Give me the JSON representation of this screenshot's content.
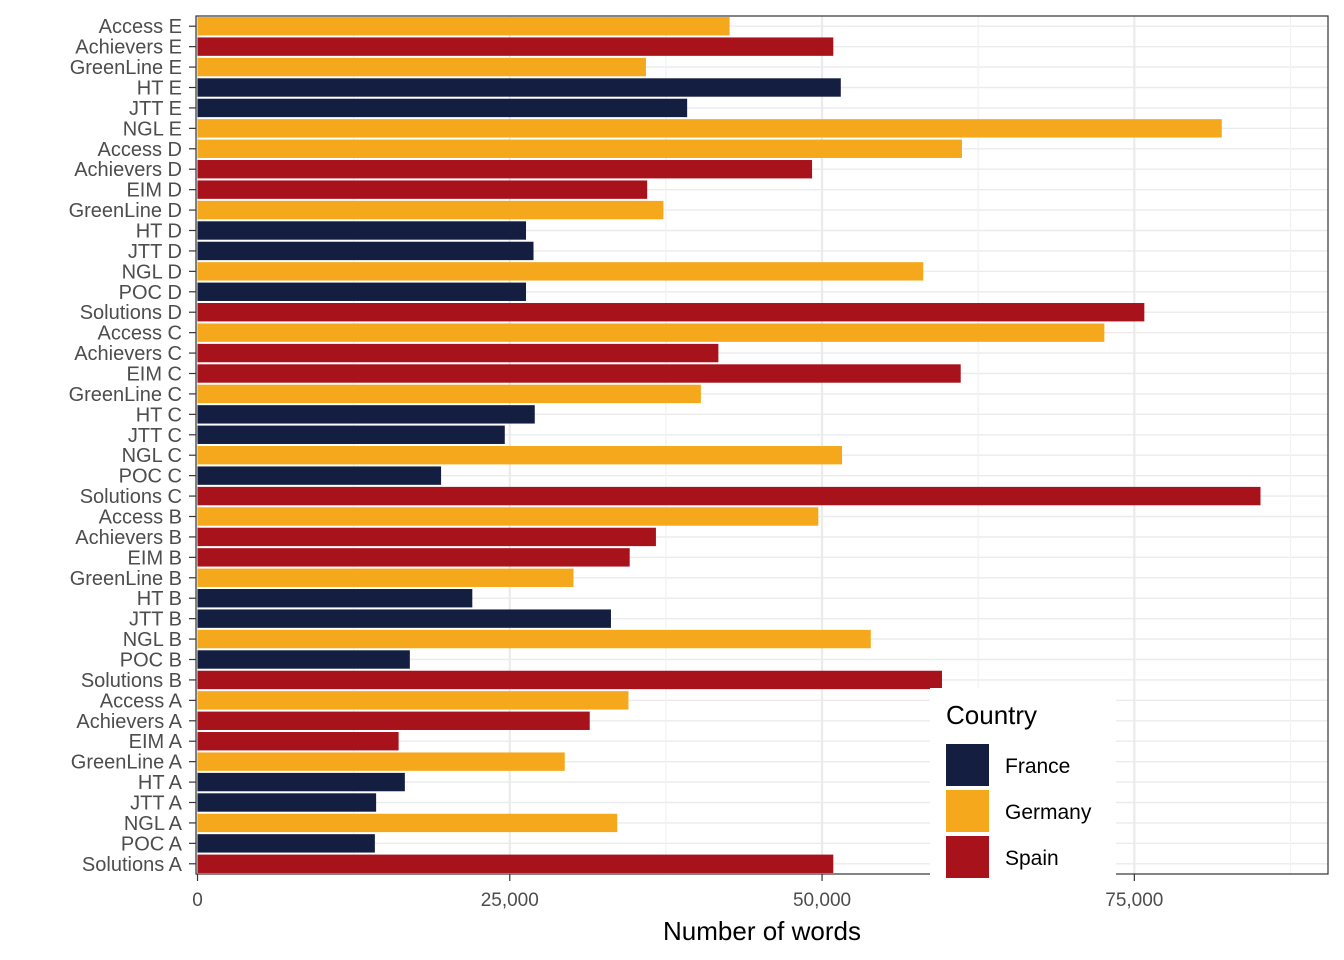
{
  "chart_data": {
    "type": "bar",
    "orientation": "horizontal",
    "xlabel": "Number of words",
    "ylabel": "",
    "xlim": [
      0,
      90000
    ],
    "xticks": [
      0,
      25000,
      50000,
      75000
    ],
    "xtick_labels": [
      "0",
      "25,000",
      "50,000",
      "75,000"
    ],
    "grid": true,
    "legend": {
      "title": "Country",
      "placement": "bottom-right inside",
      "entries": [
        {
          "name": "France",
          "color": "#131e41"
        },
        {
          "name": "Germany",
          "color": "#f5a81c"
        },
        {
          "name": "Spain",
          "color": "#a8121a"
        }
      ]
    },
    "bars": [
      {
        "label": "Access E",
        "country": "Germany",
        "value": 42600
      },
      {
        "label": "Achievers E",
        "country": "Spain",
        "value": 50900
      },
      {
        "label": "GreenLine E",
        "country": "Germany",
        "value": 35900
      },
      {
        "label": "HT E",
        "country": "France",
        "value": 51500
      },
      {
        "label": "JTT E",
        "country": "France",
        "value": 39200
      },
      {
        "label": "NGL E",
        "country": "Germany",
        "value": 82000
      },
      {
        "label": "Access D",
        "country": "Germany",
        "value": 61200
      },
      {
        "label": "Achievers D",
        "country": "Spain",
        "value": 49200
      },
      {
        "label": "EIM D",
        "country": "Spain",
        "value": 36000
      },
      {
        "label": "GreenLine D",
        "country": "Germany",
        "value": 37300
      },
      {
        "label": "HT D",
        "country": "France",
        "value": 26300
      },
      {
        "label": "JTT D",
        "country": "France",
        "value": 26900
      },
      {
        "label": "NGL D",
        "country": "Germany",
        "value": 58100
      },
      {
        "label": "POC D",
        "country": "France",
        "value": 26300
      },
      {
        "label": "Solutions D",
        "country": "Spain",
        "value": 75800
      },
      {
        "label": "Access C",
        "country": "Germany",
        "value": 72600
      },
      {
        "label": "Achievers C",
        "country": "Spain",
        "value": 41700
      },
      {
        "label": "EIM C",
        "country": "Spain",
        "value": 61100
      },
      {
        "label": "GreenLine C",
        "country": "Germany",
        "value": 40300
      },
      {
        "label": "HT C",
        "country": "France",
        "value": 27000
      },
      {
        "label": "JTT C",
        "country": "France",
        "value": 24600
      },
      {
        "label": "NGL C",
        "country": "Germany",
        "value": 51600
      },
      {
        "label": "POC C",
        "country": "France",
        "value": 19500
      },
      {
        "label": "Solutions C",
        "country": "Spain",
        "value": 85100
      },
      {
        "label": "Access B",
        "country": "Germany",
        "value": 49700
      },
      {
        "label": "Achievers B",
        "country": "Spain",
        "value": 36700
      },
      {
        "label": "EIM B",
        "country": "Spain",
        "value": 34600
      },
      {
        "label": "GreenLine B",
        "country": "Germany",
        "value": 30100
      },
      {
        "label": "HT B",
        "country": "France",
        "value": 22000
      },
      {
        "label": "JTT B",
        "country": "France",
        "value": 33100
      },
      {
        "label": "NGL B",
        "country": "Germany",
        "value": 53900
      },
      {
        "label": "POC B",
        "country": "France",
        "value": 17000
      },
      {
        "label": "Solutions B",
        "country": "Spain",
        "value": 59600
      },
      {
        "label": "Access A",
        "country": "Germany",
        "value": 34500
      },
      {
        "label": "Achievers A",
        "country": "Spain",
        "value": 31400
      },
      {
        "label": "EIM A",
        "country": "Spain",
        "value": 16100
      },
      {
        "label": "GreenLine A",
        "country": "Germany",
        "value": 29400
      },
      {
        "label": "HT A",
        "country": "France",
        "value": 16600
      },
      {
        "label": "JTT A",
        "country": "France",
        "value": 14300
      },
      {
        "label": "NGL A",
        "country": "Germany",
        "value": 33600
      },
      {
        "label": "POC A",
        "country": "France",
        "value": 14200
      },
      {
        "label": "Solutions A",
        "country": "Spain",
        "value": 50900
      }
    ]
  }
}
